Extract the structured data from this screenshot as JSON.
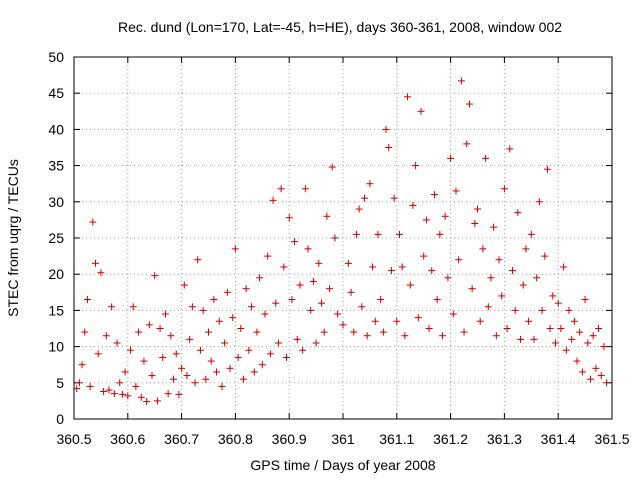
{
  "chart_data": {
    "type": "scatter",
    "title": "Rec. dund (Lon=170, Lat=-45, h=HE), days 360-361, 2008, window 002",
    "xlabel": "GPS time / Days of year 2008",
    "ylabel": "STEC from uqrg / TECUs",
    "xlim": [
      360.5,
      361.5
    ],
    "ylim": [
      0,
      50
    ],
    "xticks": [
      "360.5",
      "360.6",
      "360.7",
      "360.8",
      "360.9",
      "361",
      "361.1",
      "361.2",
      "361.3",
      "361.4",
      "361.5"
    ],
    "yticks": [
      "0",
      "5",
      "10",
      "15",
      "20",
      "25",
      "30",
      "35",
      "40",
      "45",
      "50"
    ],
    "grid": true,
    "marker": "plus",
    "color": "#cc0000",
    "series": [
      {
        "points": [
          [
            360.505,
            4.2
          ],
          [
            360.51,
            5.0
          ],
          [
            360.515,
            7.5
          ],
          [
            360.52,
            12.0
          ],
          [
            360.525,
            16.5
          ],
          [
            360.53,
            4.5
          ],
          [
            360.535,
            27.2
          ],
          [
            360.54,
            21.5
          ],
          [
            360.545,
            9.0
          ],
          [
            360.55,
            20.2
          ],
          [
            360.555,
            3.8
          ],
          [
            360.56,
            11.5
          ],
          [
            360.565,
            4.0
          ],
          [
            360.57,
            15.5
          ],
          [
            360.575,
            3.5
          ],
          [
            360.58,
            10.5
          ],
          [
            360.585,
            5.0
          ],
          [
            360.59,
            3.4
          ],
          [
            360.595,
            6.5
          ],
          [
            360.6,
            3.2
          ],
          [
            360.605,
            9.5
          ],
          [
            360.61,
            15.5
          ],
          [
            360.615,
            4.5
          ],
          [
            360.62,
            12.0
          ],
          [
            360.625,
            3.0
          ],
          [
            360.63,
            8.0
          ],
          [
            360.635,
            2.4
          ],
          [
            360.64,
            13.0
          ],
          [
            360.645,
            6.0
          ],
          [
            360.65,
            19.8
          ],
          [
            360.655,
            2.5
          ],
          [
            360.66,
            12.5
          ],
          [
            360.665,
            8.5
          ],
          [
            360.67,
            14.5
          ],
          [
            360.675,
            3.5
          ],
          [
            360.68,
            11.5
          ],
          [
            360.685,
            5.5
          ],
          [
            360.69,
            9.0
          ],
          [
            360.695,
            3.4
          ],
          [
            360.7,
            7.0
          ],
          [
            360.705,
            18.5
          ],
          [
            360.71,
            6.0
          ],
          [
            360.715,
            11.0
          ],
          [
            360.72,
            15.5
          ],
          [
            360.725,
            5.0
          ],
          [
            360.73,
            22.0
          ],
          [
            360.735,
            9.5
          ],
          [
            360.74,
            15.0
          ],
          [
            360.745,
            5.5
          ],
          [
            360.75,
            12.0
          ],
          [
            360.755,
            8.0
          ],
          [
            360.76,
            16.5
          ],
          [
            360.765,
            6.5
          ],
          [
            360.77,
            13.5
          ],
          [
            360.775,
            4.5
          ],
          [
            360.78,
            10.5
          ],
          [
            360.785,
            17.5
          ],
          [
            360.79,
            7.0
          ],
          [
            360.795,
            14.0
          ],
          [
            360.8,
            23.5
          ],
          [
            360.805,
            8.5
          ],
          [
            360.81,
            12.5
          ],
          [
            360.815,
            5.5
          ],
          [
            360.82,
            18.0
          ],
          [
            360.825,
            9.5
          ],
          [
            360.83,
            15.5
          ],
          [
            360.835,
            6.5
          ],
          [
            360.84,
            12.0
          ],
          [
            360.845,
            19.5
          ],
          [
            360.85,
            7.5
          ],
          [
            360.855,
            14.5
          ],
          [
            360.86,
            22.5
          ],
          [
            360.865,
            9.0
          ],
          [
            360.87,
            30.2
          ],
          [
            360.875,
            16.0
          ],
          [
            360.88,
            10.5
          ],
          [
            360.885,
            31.8
          ],
          [
            360.89,
            21.0
          ],
          [
            360.895,
            8.5
          ],
          [
            360.9,
            27.8
          ],
          [
            360.905,
            16.5
          ],
          [
            360.91,
            24.5
          ],
          [
            360.915,
            11.0
          ],
          [
            360.92,
            18.5
          ],
          [
            360.925,
            9.5
          ],
          [
            360.93,
            31.8
          ],
          [
            360.935,
            23.5
          ],
          [
            360.94,
            15.0
          ],
          [
            360.945,
            19.0
          ],
          [
            360.95,
            10.5
          ],
          [
            360.955,
            21.5
          ],
          [
            360.96,
            16.0
          ],
          [
            360.965,
            12.0
          ],
          [
            360.97,
            28.0
          ],
          [
            360.975,
            18.0
          ],
          [
            360.98,
            34.8
          ],
          [
            360.985,
            25.0
          ],
          [
            360.99,
            14.5
          ],
          [
            361.0,
            13.0
          ],
          [
            361.01,
            21.5
          ],
          [
            361.015,
            17.5
          ],
          [
            361.02,
            12.0
          ],
          [
            361.025,
            25.5
          ],
          [
            361.03,
            29.0
          ],
          [
            361.035,
            15.5
          ],
          [
            361.04,
            30.5
          ],
          [
            361.045,
            11.5
          ],
          [
            361.05,
            32.5
          ],
          [
            361.055,
            21.0
          ],
          [
            361.06,
            13.5
          ],
          [
            361.065,
            25.5
          ],
          [
            361.07,
            16.5
          ],
          [
            361.075,
            12.0
          ],
          [
            361.08,
            40.0
          ],
          [
            361.085,
            37.5
          ],
          [
            361.09,
            20.5
          ],
          [
            361.095,
            30.5
          ],
          [
            361.1,
            13.5
          ],
          [
            361.105,
            25.5
          ],
          [
            361.11,
            21.0
          ],
          [
            361.115,
            11.5
          ],
          [
            361.12,
            44.5
          ],
          [
            361.125,
            18.5
          ],
          [
            361.13,
            29.5
          ],
          [
            361.135,
            35.0
          ],
          [
            361.14,
            14.0
          ],
          [
            361.145,
            42.5
          ],
          [
            361.15,
            22.5
          ],
          [
            361.155,
            27.5
          ],
          [
            361.16,
            12.5
          ],
          [
            361.165,
            20.5
          ],
          [
            361.17,
            31.0
          ],
          [
            361.175,
            16.5
          ],
          [
            361.18,
            25.5
          ],
          [
            361.185,
            11.5
          ],
          [
            361.19,
            28.0
          ],
          [
            361.195,
            19.5
          ],
          [
            361.2,
            36.0
          ],
          [
            361.205,
            14.5
          ],
          [
            361.21,
            31.5
          ],
          [
            361.215,
            22.0
          ],
          [
            361.22,
            46.7
          ],
          [
            361.225,
            12.0
          ],
          [
            361.23,
            38.0
          ],
          [
            361.235,
            43.5
          ],
          [
            361.24,
            18.0
          ],
          [
            361.245,
            27.0
          ],
          [
            361.25,
            29.0
          ],
          [
            361.255,
            13.5
          ],
          [
            361.26,
            23.5
          ],
          [
            361.265,
            36.0
          ],
          [
            361.27,
            15.5
          ],
          [
            361.275,
            19.5
          ],
          [
            361.28,
            26.5
          ],
          [
            361.285,
            11.5
          ],
          [
            361.29,
            22.0
          ],
          [
            361.295,
            17.0
          ],
          [
            361.3,
            31.8
          ],
          [
            361.305,
            12.5
          ],
          [
            361.31,
            37.3
          ],
          [
            361.315,
            20.5
          ],
          [
            361.32,
            15.0
          ],
          [
            361.325,
            28.5
          ],
          [
            361.33,
            11.0
          ],
          [
            361.335,
            18.5
          ],
          [
            361.34,
            23.5
          ],
          [
            361.345,
            13.5
          ],
          [
            361.35,
            25.5
          ],
          [
            361.355,
            11.0
          ],
          [
            361.36,
            19.5
          ],
          [
            361.365,
            30.0
          ],
          [
            361.37,
            15.0
          ],
          [
            361.375,
            22.5
          ],
          [
            361.38,
            34.5
          ],
          [
            361.385,
            12.5
          ],
          [
            361.39,
            17.0
          ],
          [
            361.395,
            10.5
          ],
          [
            361.4,
            16.0
          ],
          [
            361.405,
            12.5
          ],
          [
            361.41,
            21.0
          ],
          [
            361.415,
            9.5
          ],
          [
            361.42,
            15.0
          ],
          [
            361.425,
            11.0
          ],
          [
            361.43,
            13.5
          ],
          [
            361.435,
            8.0
          ],
          [
            361.44,
            12.0
          ],
          [
            361.445,
            6.5
          ],
          [
            361.45,
            16.5
          ],
          [
            361.455,
            10.5
          ],
          [
            361.46,
            5.5
          ],
          [
            361.465,
            11.5
          ],
          [
            361.47,
            7.0
          ],
          [
            361.475,
            12.5
          ],
          [
            361.48,
            6.0
          ],
          [
            361.485,
            10.0
          ],
          [
            361.49,
            5.0
          ]
        ]
      }
    ]
  }
}
